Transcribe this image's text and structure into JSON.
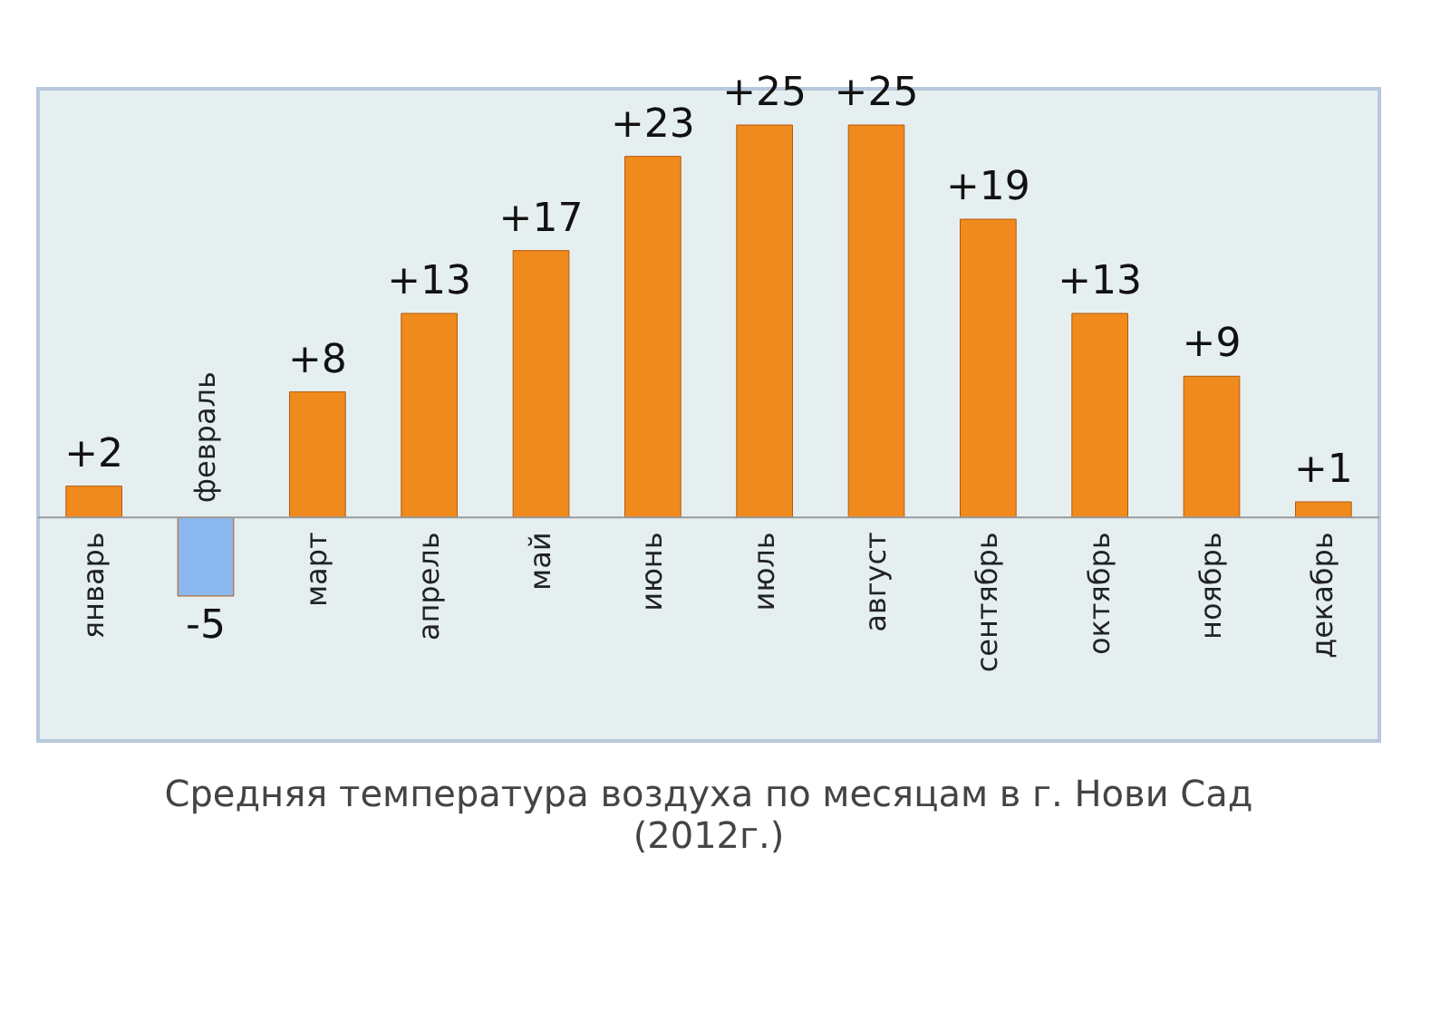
{
  "chart_data": {
    "type": "bar",
    "title": "Средняя температура воздуха по месяцам в г. Нови Сад",
    "subtitle": "(2012г.)",
    "categories": [
      "январь",
      "февраль",
      "март",
      "апрель",
      "май",
      "июнь",
      "июль",
      "август",
      "сентябрь",
      "октябрь",
      "ноябрь",
      "декабрь"
    ],
    "values": [
      2,
      -5,
      8,
      13,
      17,
      23,
      25,
      25,
      19,
      13,
      9,
      1
    ],
    "value_labels": [
      "+2",
      "-5",
      "+8",
      "+13",
      "+17",
      "+23",
      "+25",
      "+25",
      "+19",
      "+13",
      "+9",
      "+1"
    ],
    "colors": [
      "#f08a1c",
      "#8ab8ee",
      "#f08a1c",
      "#f08a1c",
      "#f08a1c",
      "#f08a1c",
      "#f08a1c",
      "#f08a1c",
      "#f08a1c",
      "#f08a1c",
      "#f08a1c",
      "#f08a1c"
    ]
  }
}
